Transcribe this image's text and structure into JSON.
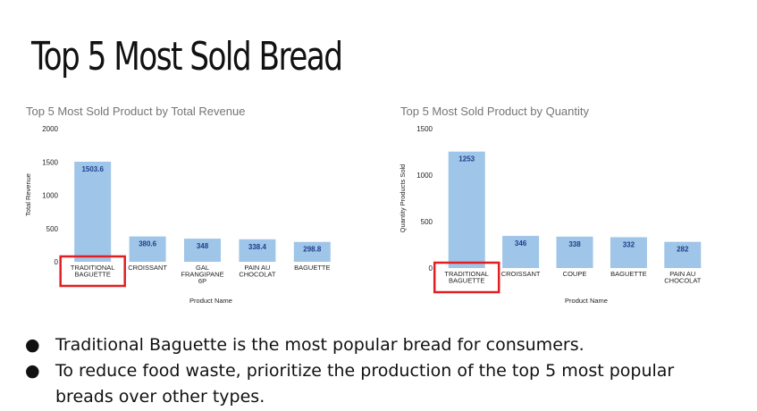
{
  "slide_title": "Top 5 Most Sold Bread",
  "bullets": [
    "Traditional Baguette is the most popular bread for consumers.",
    "To reduce food waste, prioritize the production of the top 5 most popular breads over other types."
  ],
  "bullet_glyph": "●",
  "highlight_color": "#e02020",
  "bar_color": "#9fc5e8",
  "label_color": "#1f3e8c",
  "chart_data": [
    {
      "type": "bar",
      "title": "Top 5 Most Sold Product by Total Revenue",
      "xlabel": "Product Name",
      "ylabel": "Total Revenue",
      "categories": [
        [
          "TRADITIONAL",
          "BAGUETTE"
        ],
        [
          "CROISSANT"
        ],
        [
          "GAL",
          "FRANGIPANE",
          "6P"
        ],
        [
          "PAIN AU",
          "CHOCOLAT"
        ],
        [
          "BAGUETTE"
        ]
      ],
      "values": [
        1503.6,
        380.6,
        348,
        338.4,
        298.8
      ],
      "value_labels": [
        "1503.6",
        "380.6",
        "348",
        "338.4",
        "298.8"
      ],
      "ylim": [
        0,
        2000
      ],
      "yticks": [
        0,
        500,
        1000,
        1500,
        2000
      ],
      "grid": false,
      "highlighted_category_index": 0
    },
    {
      "type": "bar",
      "title": "Top 5 Most Sold Product by Quantity",
      "xlabel": "Product Name",
      "ylabel": "Quantity Products Sold",
      "categories": [
        [
          "TRADITIONAL",
          "BAGUETTE"
        ],
        [
          "CROISSANT"
        ],
        [
          "COUPE"
        ],
        [
          "BAGUETTE"
        ],
        [
          "PAIN AU",
          "CHOCOLAT"
        ]
      ],
      "values": [
        1253,
        346,
        338,
        332,
        282
      ],
      "value_labels": [
        "1253",
        "346",
        "338",
        "332",
        "282"
      ],
      "ylim": [
        0,
        1500
      ],
      "yticks": [
        0,
        500,
        1000,
        1500
      ],
      "grid": false,
      "highlighted_category_index": 0
    }
  ]
}
